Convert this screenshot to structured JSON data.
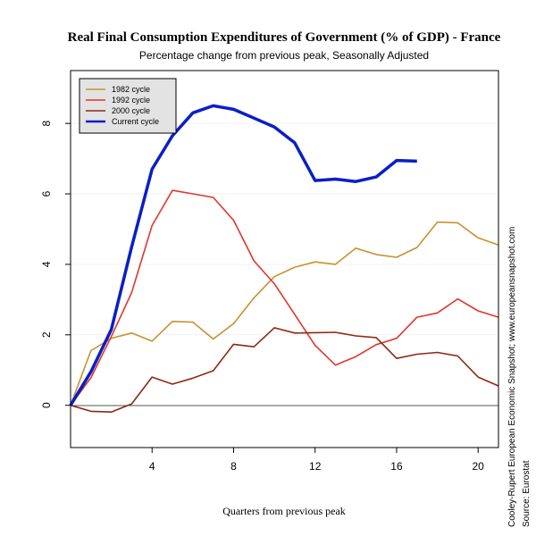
{
  "chart_data": {
    "type": "line",
    "title": "Real Final Consumption Expenditures of Government (% of GDP) - France",
    "subtitle": "Percentage change from previous peak, Seasonally Adjusted",
    "xlabel": "Quarters from previous peak",
    "ylabel": "",
    "xlim": [
      0,
      21
    ],
    "ylim": [
      -1.2,
      9.5
    ],
    "x_ticks": [
      4,
      8,
      12,
      16,
      20
    ],
    "y_ticks": [
      0,
      2,
      4,
      6,
      8
    ],
    "grid": "faint horizontal lines at y ticks",
    "legend_position": "top-left",
    "side_notes": [
      "Cooley-Rupert European Economic Snapshot; www.europeansnapshot.com",
      "Source: Eurostat"
    ],
    "series": [
      {
        "name": "1982 cycle",
        "color": "#c8922e",
        "x": [
          0,
          1,
          2,
          3,
          4,
          5,
          6,
          7,
          8,
          9,
          10,
          11,
          12,
          13,
          14,
          15,
          16,
          17,
          18,
          19,
          20,
          21
        ],
        "values": [
          0,
          1.55,
          1.9,
          2.05,
          1.82,
          2.38,
          2.36,
          1.88,
          2.32,
          3.05,
          3.65,
          3.92,
          4.07,
          4.0,
          4.46,
          4.28,
          4.2,
          4.48,
          5.2,
          5.18,
          4.75,
          4.55
        ]
      },
      {
        "name": "1992 cycle",
        "color": "#e0362c",
        "x": [
          0,
          1,
          2,
          3,
          4,
          5,
          6,
          7,
          8,
          9,
          10,
          11,
          12,
          13,
          14,
          15,
          16,
          17,
          18,
          19,
          20,
          21
        ],
        "values": [
          0,
          0.78,
          1.95,
          3.2,
          5.1,
          6.1,
          6.0,
          5.9,
          5.25,
          4.1,
          3.45,
          2.58,
          1.7,
          1.14,
          1.38,
          1.72,
          1.9,
          2.5,
          2.62,
          3.02,
          2.68,
          2.5
        ]
      },
      {
        "name": "2000 cycle",
        "color": "#8b2a14",
        "x": [
          0,
          1,
          2,
          3,
          4,
          5,
          6,
          7,
          8,
          9,
          10,
          11,
          12,
          13,
          14,
          15,
          16,
          17,
          18,
          19,
          20,
          21
        ],
        "values": [
          0,
          -0.17,
          -0.19,
          0.04,
          0.8,
          0.6,
          0.77,
          0.98,
          1.73,
          1.66,
          2.2,
          2.05,
          2.06,
          2.07,
          1.97,
          1.92,
          1.33,
          1.45,
          1.5,
          1.4,
          0.8,
          0.55
        ]
      },
      {
        "name": "Current cycle",
        "color": "#0a1ec8",
        "x": [
          0,
          1,
          2,
          3,
          4,
          5,
          6,
          7,
          8,
          9,
          10,
          11,
          12,
          13,
          14,
          15,
          16,
          17
        ],
        "values": [
          0,
          0.95,
          2.15,
          4.5,
          6.7,
          7.65,
          8.3,
          8.5,
          8.4,
          8.15,
          7.9,
          7.45,
          6.38,
          6.42,
          6.35,
          6.48,
          6.95,
          6.93
        ]
      }
    ]
  }
}
